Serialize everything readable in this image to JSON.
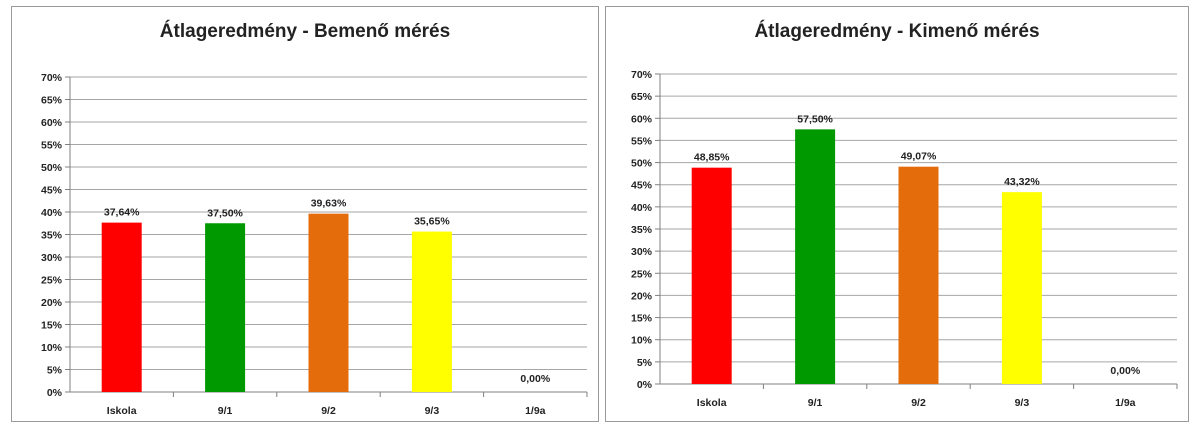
{
  "chart_data": [
    {
      "type": "bar",
      "title": "Átlageredmény - Bemenő mérés",
      "categories": [
        "Iskola",
        "9/1",
        "9/2",
        "9/3",
        "1/9a"
      ],
      "values": [
        37.64,
        37.5,
        39.63,
        35.65,
        0
      ],
      "data_labels": [
        "37,64%",
        "37,50%",
        "39,63%",
        "35,65%",
        "0,00%"
      ],
      "colors": [
        "#ff0000",
        "#009900",
        "#e46c0a",
        "#ffff00",
        "#ffffff"
      ],
      "ylim": [
        0,
        70
      ],
      "yticks": [
        "0%",
        "5%",
        "10%",
        "15%",
        "20%",
        "25%",
        "30%",
        "35%",
        "40%",
        "45%",
        "50%",
        "55%",
        "60%",
        "65%",
        "70%"
      ],
      "grid": true,
      "xlabel": "",
      "ylabel": ""
    },
    {
      "type": "bar",
      "title": "Átlageredmény - Kimenő mérés",
      "categories": [
        "Iskola",
        "9/1",
        "9/2",
        "9/3",
        "1/9a"
      ],
      "values": [
        48.85,
        57.5,
        49.07,
        43.32,
        0
      ],
      "data_labels": [
        "48,85%",
        "57,50%",
        "49,07%",
        "43,32%",
        "0,00%"
      ],
      "colors": [
        "#ff0000",
        "#009900",
        "#e46c0a",
        "#ffff00",
        "#ffffff"
      ],
      "ylim": [
        0,
        70
      ],
      "yticks": [
        "0%",
        "5%",
        "10%",
        "15%",
        "20%",
        "25%",
        "30%",
        "35%",
        "40%",
        "45%",
        "50%",
        "55%",
        "60%",
        "65%",
        "70%"
      ],
      "grid": true,
      "xlabel": "",
      "ylabel": ""
    }
  ]
}
